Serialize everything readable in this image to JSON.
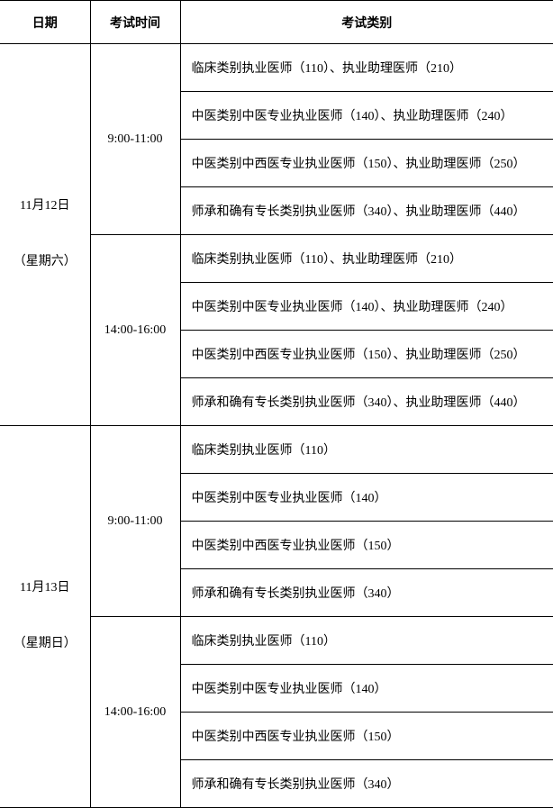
{
  "headers": {
    "date": "日期",
    "time": "考试时间",
    "type": "考试类别"
  },
  "day1": {
    "date_line1": "11月12日",
    "date_line2": "（星期六）",
    "morning": {
      "time": "9:00-11:00",
      "rows": [
        "临床类别执业医师（110）、执业助理医师（210）",
        "中医类别中医专业执业医师（140）、执业助理医师（240）",
        "中医类别中西医专业执业医师（150）、执业助理医师（250）",
        "师承和确有专长类别执业医师（340）、执业助理医师（440）"
      ]
    },
    "afternoon": {
      "time": "14:00-16:00",
      "rows": [
        "临床类别执业医师（110）、执业助理医师（210）",
        "中医类别中医专业执业医师（140）、执业助理医师（240）",
        "中医类别中西医专业执业医师（150）、执业助理医师（250）",
        "师承和确有专长类别执业医师（340）、执业助理医师（440）"
      ]
    }
  },
  "day2": {
    "date_line1": "11月13日",
    "date_line2": "（星期日）",
    "morning": {
      "time": "9:00-11:00",
      "rows": [
        "临床类别执业医师（110）",
        "中医类别中医专业执业医师（140）",
        "中医类别中西医专业执业医师（150）",
        "师承和确有专长类别执业医师（340）"
      ]
    },
    "afternoon": {
      "time": "14:00-16:00",
      "rows": [
        "临床类别执业医师（110）",
        "中医类别中医专业执业医师（140）",
        "中医类别中西医专业执业医师（150）",
        "师承和确有专长类别执业医师（340）"
      ]
    }
  }
}
